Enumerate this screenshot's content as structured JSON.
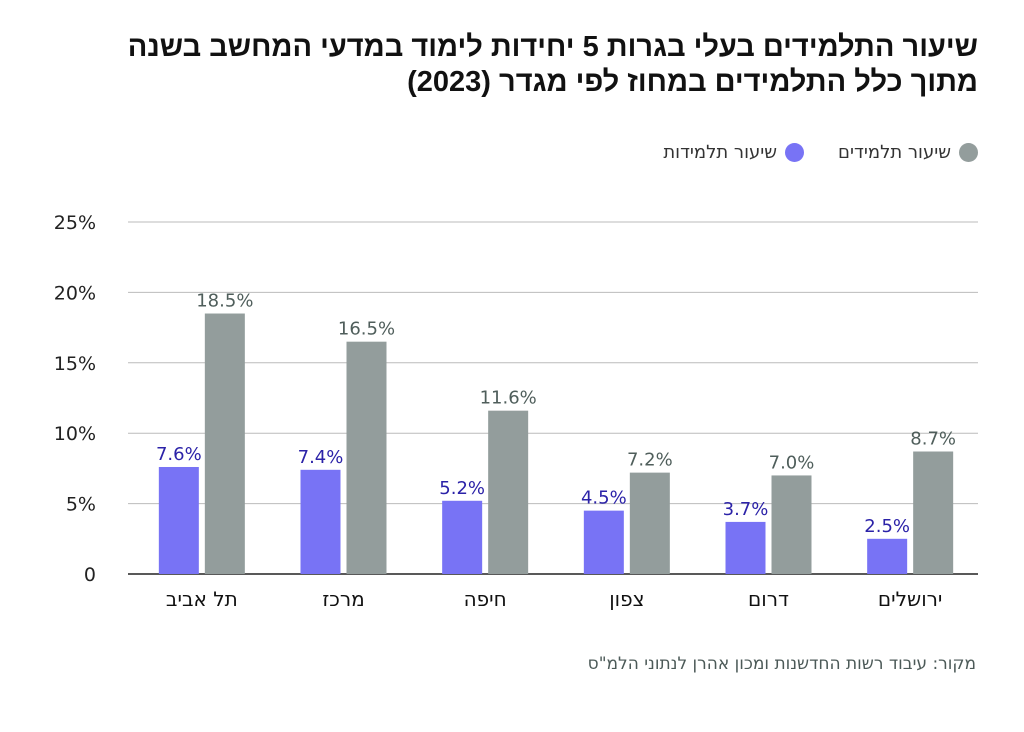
{
  "title_lines": [
    "שיעור התלמידים בעלי בגרות 5 יחידות לימוד במדעי המחשב בשנה",
    "מתוך כלל התלמידים במחוז לפי מגדר (2023)"
  ],
  "source": "מקור: עיבוד רשות החדשנות ומכון אהרן לנתוני הלמ\"ס",
  "colors": {
    "female": "#7873f5",
    "male": "#939d9c",
    "female_label": "#2b22a8",
    "male_label": "#4f5e5b"
  },
  "chart_data": {
    "type": "bar",
    "categories": [
      "תל אביב",
      "מרכז",
      "חיפה",
      "צפון",
      "דרום",
      "ירושלים"
    ],
    "series": [
      {
        "name": "שיעור תלמידות",
        "values": [
          7.6,
          7.4,
          5.2,
          4.5,
          3.7,
          2.5
        ],
        "labels": [
          "7.6%",
          "7.4%",
          "5.2%",
          "4.5%",
          "3.7%",
          "2.5%"
        ]
      },
      {
        "name": "שיעור תלמידים",
        "values": [
          18.5,
          16.5,
          11.6,
          7.2,
          7.0,
          8.7
        ],
        "labels": [
          "18.5%",
          "16.5%",
          "11.6%",
          "7.2%",
          "7.0%",
          "8.7%"
        ]
      }
    ],
    "yticks": [
      "0",
      "5%",
      "10%",
      "15%",
      "20%",
      "25%"
    ],
    "ylim": [
      0,
      25
    ],
    "grid": true,
    "legend": "top-right"
  }
}
